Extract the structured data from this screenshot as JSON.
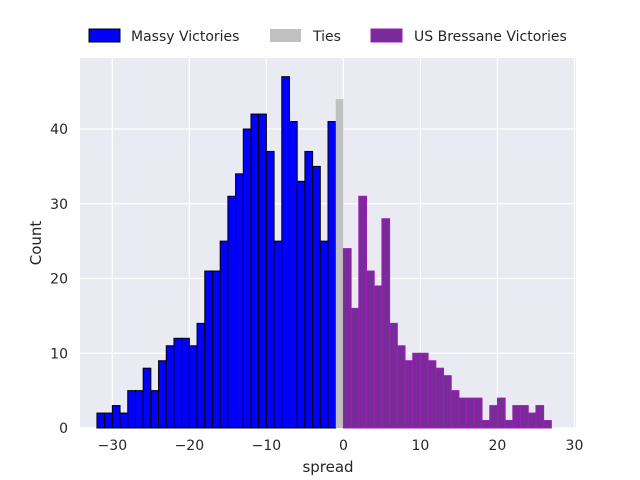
{
  "chart_data": {
    "type": "bar",
    "xlabel": "spread",
    "ylabel": "Count",
    "xlim": [
      -34.2,
      30.2
    ],
    "ylim": [
      0,
      49.5
    ],
    "xticks": [
      -30,
      -20,
      -10,
      0,
      10,
      20,
      30
    ],
    "xtick_labels": [
      "−30",
      "−20",
      "−10",
      "0",
      "10",
      "20",
      "30"
    ],
    "yticks": [
      0,
      10,
      20,
      30,
      40
    ],
    "ytick_labels": [
      "0",
      "10",
      "20",
      "30",
      "40"
    ],
    "grid": true,
    "legend_position": "top",
    "bin_width": 1,
    "colors": {
      "background": "#eaeaf2",
      "grid": "#ffffff",
      "massy": "#0000ff",
      "ties": "#c0c0c0",
      "us_bressane": "#7b2a9a",
      "us_bressane_edge": "#9b1fb8",
      "massy_edge": "#000000"
    },
    "series": [
      {
        "name": "Massy Victories",
        "bin_starts": [
          -32,
          -31,
          -30,
          -29,
          -28,
          -27,
          -26,
          -25,
          -24,
          -23,
          -22,
          -21,
          -20,
          -19,
          -18,
          -17,
          -16,
          -15,
          -14,
          -13,
          -12,
          -11,
          -10,
          -9,
          -8,
          -7,
          -6,
          -5,
          -4,
          -3,
          -2,
          -1
        ],
        "values": [
          2,
          2,
          3,
          2,
          5,
          5,
          8,
          5,
          9,
          11,
          12,
          12,
          11,
          14,
          21,
          21,
          25,
          31,
          34,
          40,
          42,
          42,
          37,
          25,
          47,
          41,
          33,
          37,
          35,
          25,
          41,
          0
        ]
      },
      {
        "name": "Ties",
        "bin_starts": [
          -1
        ],
        "values": [
          44
        ]
      },
      {
        "name": "US Bressane Victories",
        "bin_starts": [
          0,
          1,
          2,
          3,
          4,
          5,
          6,
          7,
          8,
          9,
          10,
          11,
          12,
          13,
          14,
          15,
          16,
          17,
          18,
          19,
          20,
          21,
          22,
          23,
          24,
          25,
          26
        ],
        "values": [
          24,
          16,
          31,
          21,
          19,
          28,
          14,
          11,
          9,
          10,
          10,
          9,
          8,
          7,
          5,
          4,
          4,
          4,
          1,
          3,
          4,
          1,
          3,
          3,
          2,
          3,
          1
        ]
      }
    ]
  }
}
